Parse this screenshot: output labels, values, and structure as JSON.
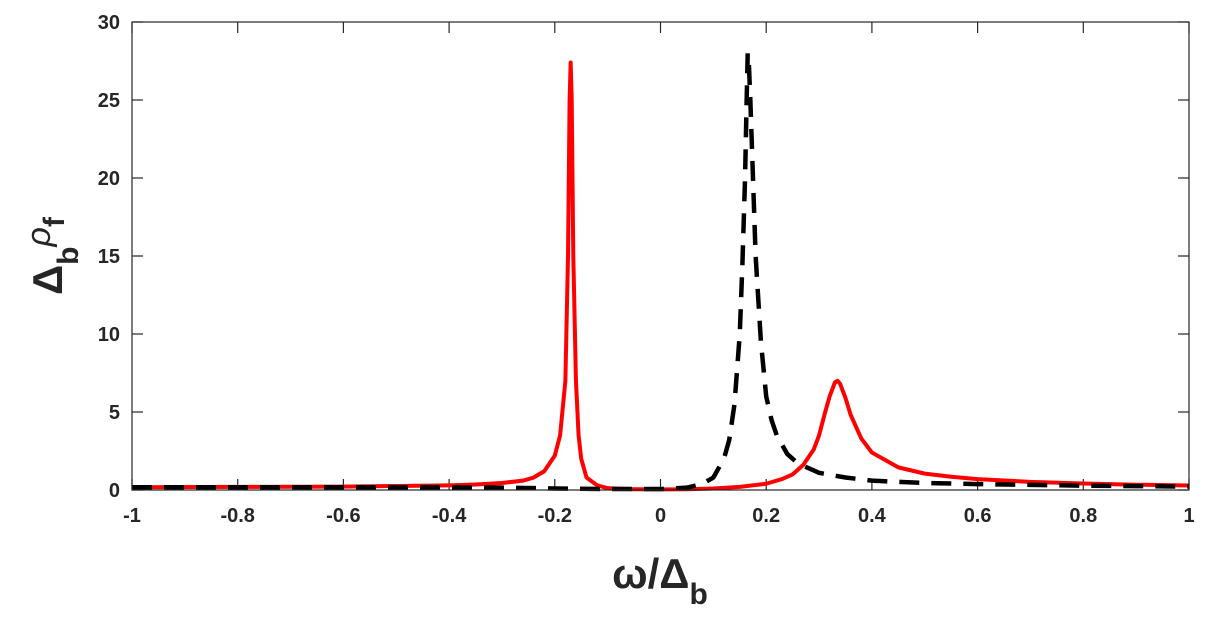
{
  "chart_data": {
    "type": "line",
    "title": "",
    "xlabel": {
      "main": "ω/Δ",
      "sub": "b"
    },
    "ylabel": {
      "main": "Δ",
      "sub": "b",
      "rho": "ρ",
      "rho_sub": "f"
    },
    "xlim": [
      -1,
      1
    ],
    "ylim": [
      0,
      30
    ],
    "xticks": [
      -1,
      -0.8,
      -0.6,
      -0.4,
      -0.2,
      0,
      0.2,
      0.4,
      0.6,
      0.8,
      1
    ],
    "xtick_labels": [
      "-1",
      "-0.8",
      "-0.6",
      "-0.4",
      "-0.2",
      "0",
      "0.2",
      "0.4",
      "0.6",
      "0.8",
      "1"
    ],
    "yticks": [
      0,
      5,
      10,
      15,
      20,
      25,
      30
    ],
    "ytick_labels": [
      "0",
      "5",
      "10",
      "15",
      "20",
      "25",
      "30"
    ],
    "grid": false,
    "box": true,
    "series": [
      {
        "style": "solid",
        "color": "#ff0000",
        "points": [
          [
            -1.0,
            0.18
          ],
          [
            -0.8,
            0.2
          ],
          [
            -0.6,
            0.22
          ],
          [
            -0.5,
            0.26
          ],
          [
            -0.4,
            0.3
          ],
          [
            -0.35,
            0.35
          ],
          [
            -0.3,
            0.45
          ],
          [
            -0.26,
            0.6
          ],
          [
            -0.24,
            0.8
          ],
          [
            -0.22,
            1.2
          ],
          [
            -0.2,
            2.2
          ],
          [
            -0.19,
            3.5
          ],
          [
            -0.18,
            7.0
          ],
          [
            -0.175,
            15.0
          ],
          [
            -0.172,
            25.0
          ],
          [
            -0.17,
            27.4
          ],
          [
            -0.168,
            25.0
          ],
          [
            -0.165,
            15.0
          ],
          [
            -0.16,
            7.0
          ],
          [
            -0.155,
            3.5
          ],
          [
            -0.15,
            2.0
          ],
          [
            -0.14,
            0.8
          ],
          [
            -0.12,
            0.3
          ],
          [
            -0.1,
            0.12
          ],
          [
            -0.05,
            0.05
          ],
          [
            0.0,
            0.04
          ],
          [
            0.05,
            0.05
          ],
          [
            0.1,
            0.1
          ],
          [
            0.15,
            0.2
          ],
          [
            0.2,
            0.4
          ],
          [
            0.23,
            0.7
          ],
          [
            0.25,
            1.0
          ],
          [
            0.27,
            1.6
          ],
          [
            0.29,
            2.6
          ],
          [
            0.3,
            3.5
          ],
          [
            0.31,
            4.8
          ],
          [
            0.32,
            6.0
          ],
          [
            0.33,
            6.9
          ],
          [
            0.335,
            7.0
          ],
          [
            0.34,
            6.8
          ],
          [
            0.35,
            5.9
          ],
          [
            0.36,
            4.8
          ],
          [
            0.38,
            3.3
          ],
          [
            0.4,
            2.4
          ],
          [
            0.45,
            1.45
          ],
          [
            0.5,
            1.05
          ],
          [
            0.55,
            0.85
          ],
          [
            0.6,
            0.7
          ],
          [
            0.7,
            0.52
          ],
          [
            0.8,
            0.42
          ],
          [
            0.9,
            0.34
          ],
          [
            1.0,
            0.29
          ]
        ]
      },
      {
        "style": "dashed",
        "color": "#000000",
        "points": [
          [
            -1.0,
            0.18
          ],
          [
            -0.8,
            0.18
          ],
          [
            -0.6,
            0.18
          ],
          [
            -0.4,
            0.17
          ],
          [
            -0.3,
            0.15
          ],
          [
            -0.2,
            0.1
          ],
          [
            -0.1,
            0.06
          ],
          [
            0.0,
            0.06
          ],
          [
            0.05,
            0.15
          ],
          [
            0.08,
            0.4
          ],
          [
            0.1,
            0.8
          ],
          [
            0.12,
            2.0
          ],
          [
            0.13,
            3.2
          ],
          [
            0.14,
            5.5
          ],
          [
            0.15,
            10.0
          ],
          [
            0.155,
            14.5
          ],
          [
            0.16,
            20.0
          ],
          [
            0.163,
            25.0
          ],
          [
            0.165,
            28.0
          ],
          [
            0.167,
            27.5
          ],
          [
            0.17,
            25.0
          ],
          [
            0.175,
            20.0
          ],
          [
            0.18,
            15.0
          ],
          [
            0.19,
            9.5
          ],
          [
            0.2,
            6.0
          ],
          [
            0.21,
            4.5
          ],
          [
            0.22,
            3.5
          ],
          [
            0.24,
            2.3
          ],
          [
            0.26,
            1.7
          ],
          [
            0.3,
            1.1
          ],
          [
            0.35,
            0.8
          ],
          [
            0.4,
            0.6
          ],
          [
            0.5,
            0.45
          ],
          [
            0.6,
            0.38
          ],
          [
            0.7,
            0.33
          ],
          [
            0.8,
            0.28
          ],
          [
            0.9,
            0.25
          ],
          [
            1.0,
            0.22
          ]
        ]
      }
    ]
  }
}
